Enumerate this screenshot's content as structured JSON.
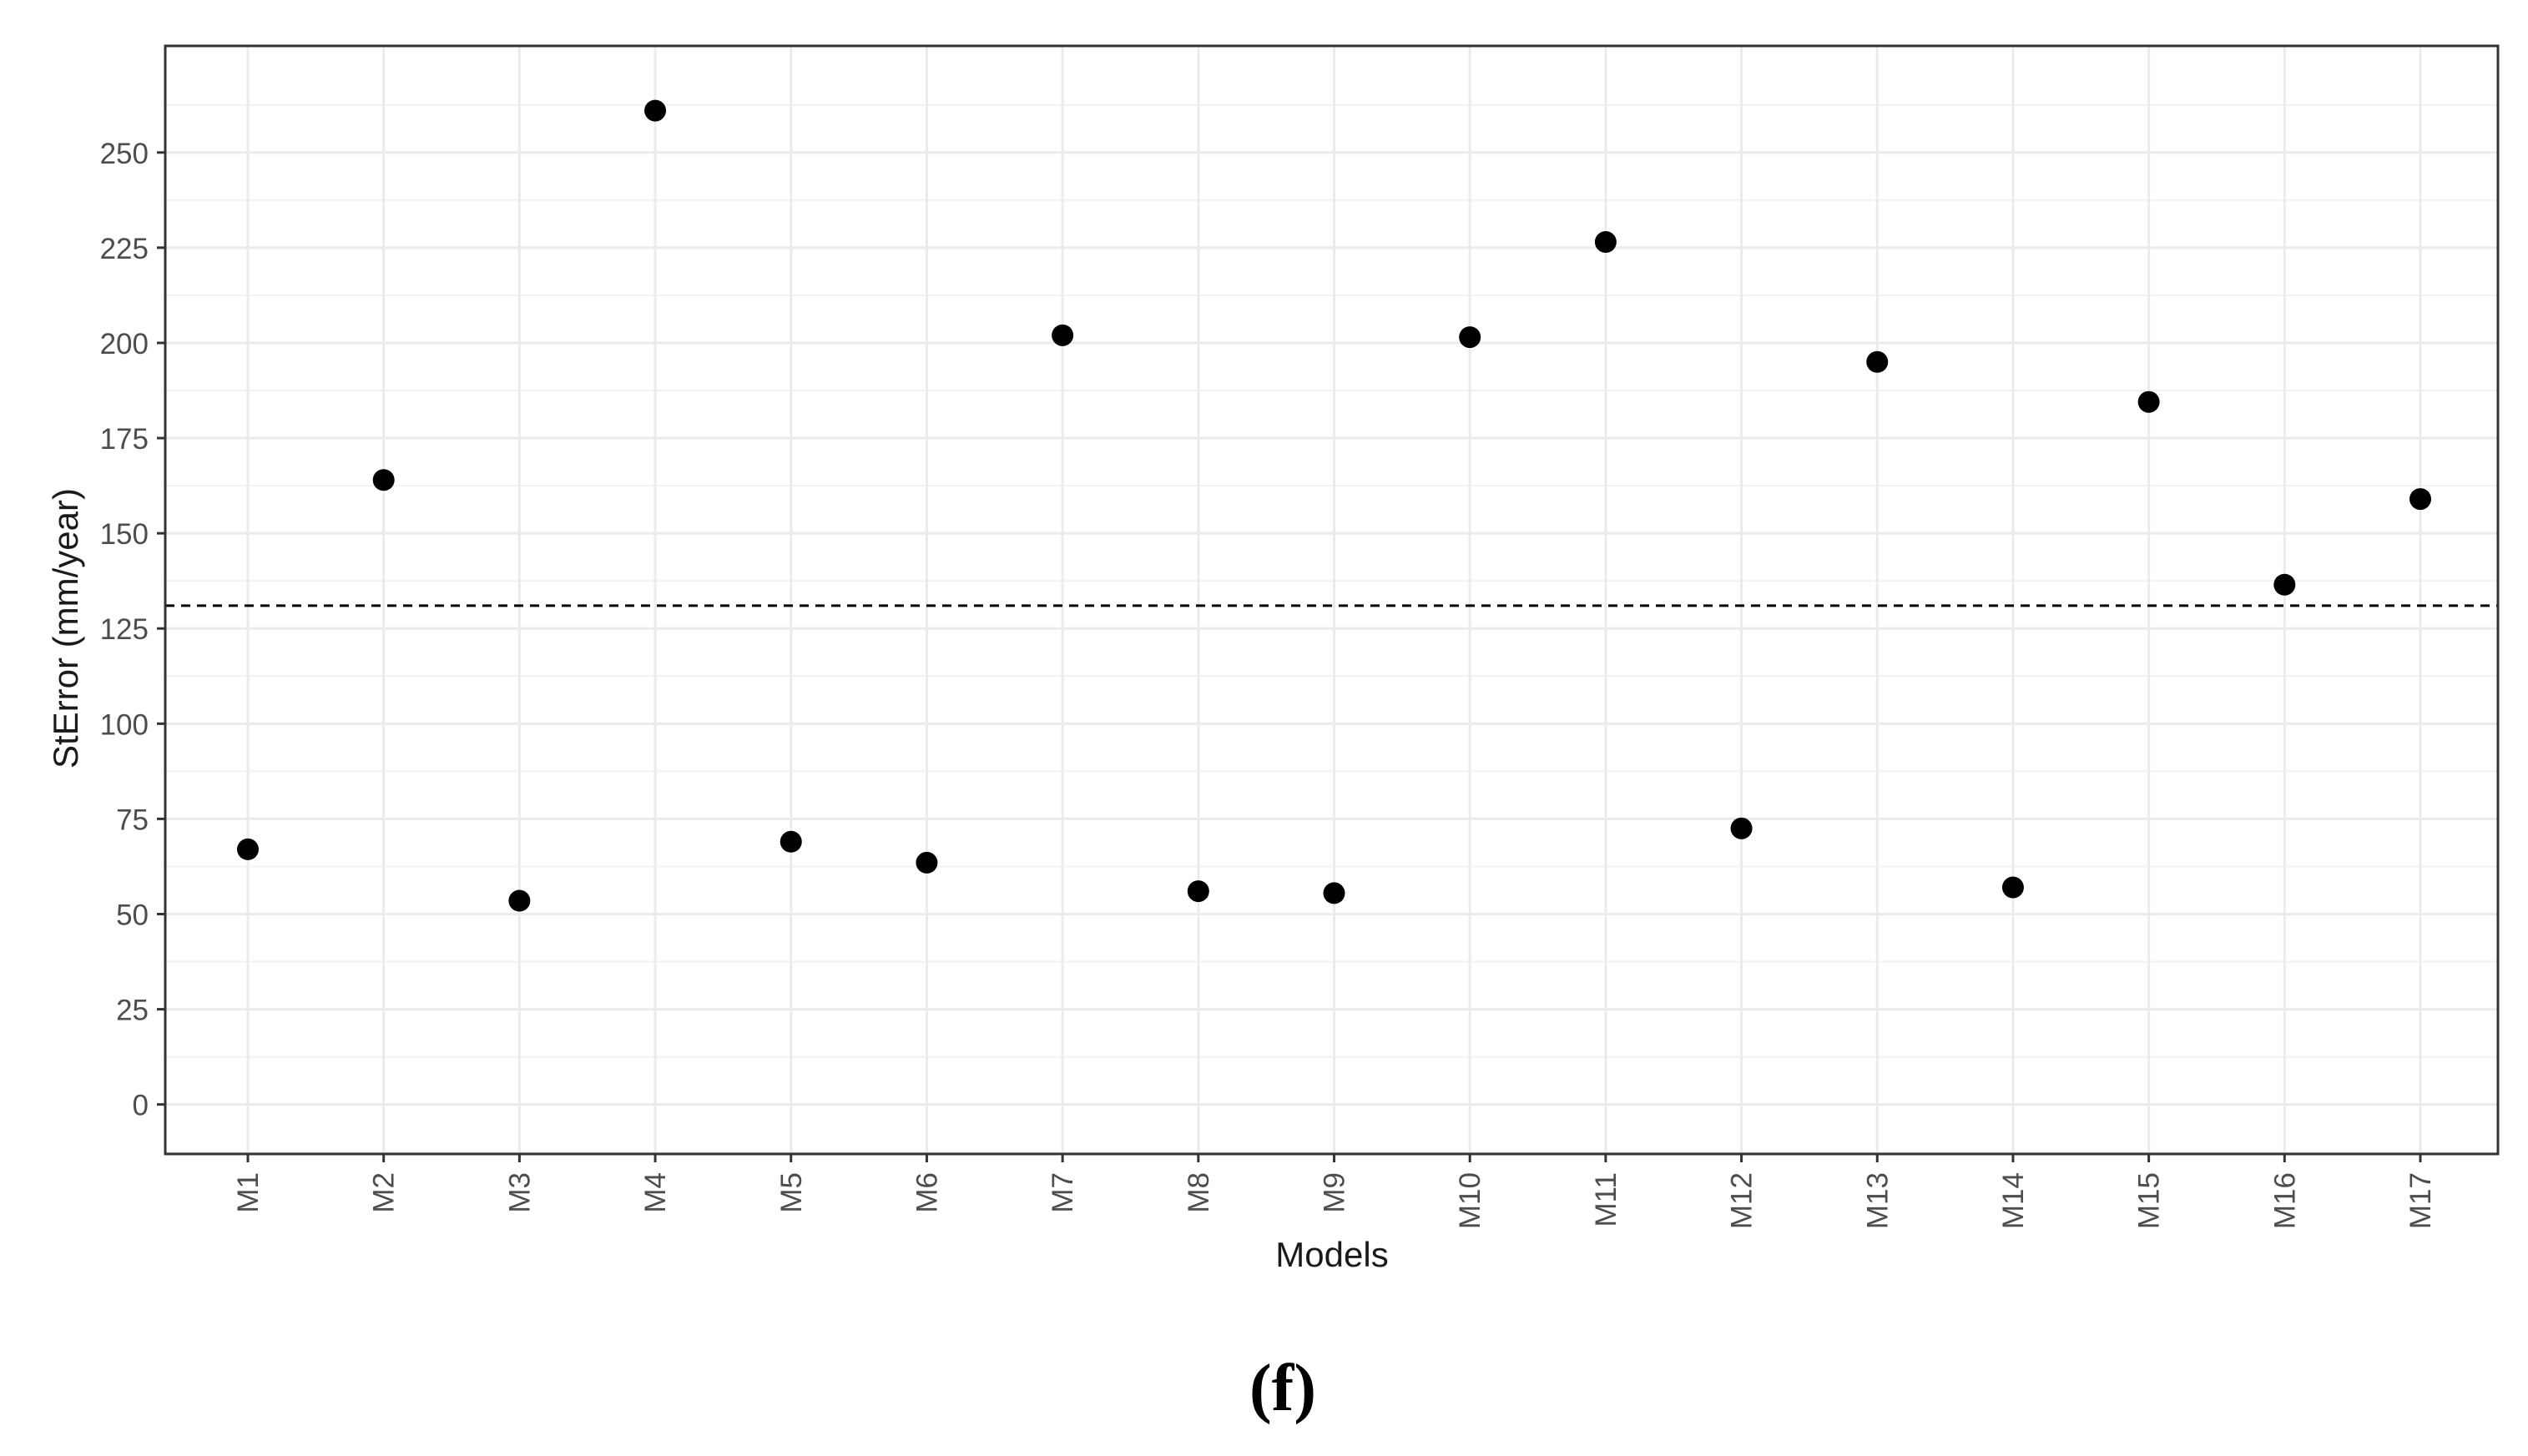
{
  "chart_data": {
    "type": "scatter",
    "xlabel": "Models",
    "ylabel": "StError (mm/year)",
    "categories": [
      "M1",
      "M2",
      "M3",
      "M4",
      "M5",
      "M6",
      "M7",
      "M8",
      "M9",
      "M10",
      "M11",
      "M12",
      "M13",
      "M14",
      "M15",
      "M16",
      "M17"
    ],
    "series": [
      {
        "values": [
          67,
          164,
          53.5,
          261,
          69,
          63.5,
          202,
          56,
          55.5,
          201.5,
          226.5,
          72.5,
          195,
          57,
          184.5,
          136.5,
          159
        ]
      }
    ],
    "y_ticks": [
      0,
      25,
      50,
      75,
      100,
      125,
      150,
      175,
      200,
      225,
      250
    ],
    "ylim": [
      -13,
      278
    ],
    "reference_line": {
      "y": 131,
      "style": "dashed"
    },
    "grid": true,
    "legend": "none",
    "point_color": "#000000"
  },
  "caption": "(f)"
}
